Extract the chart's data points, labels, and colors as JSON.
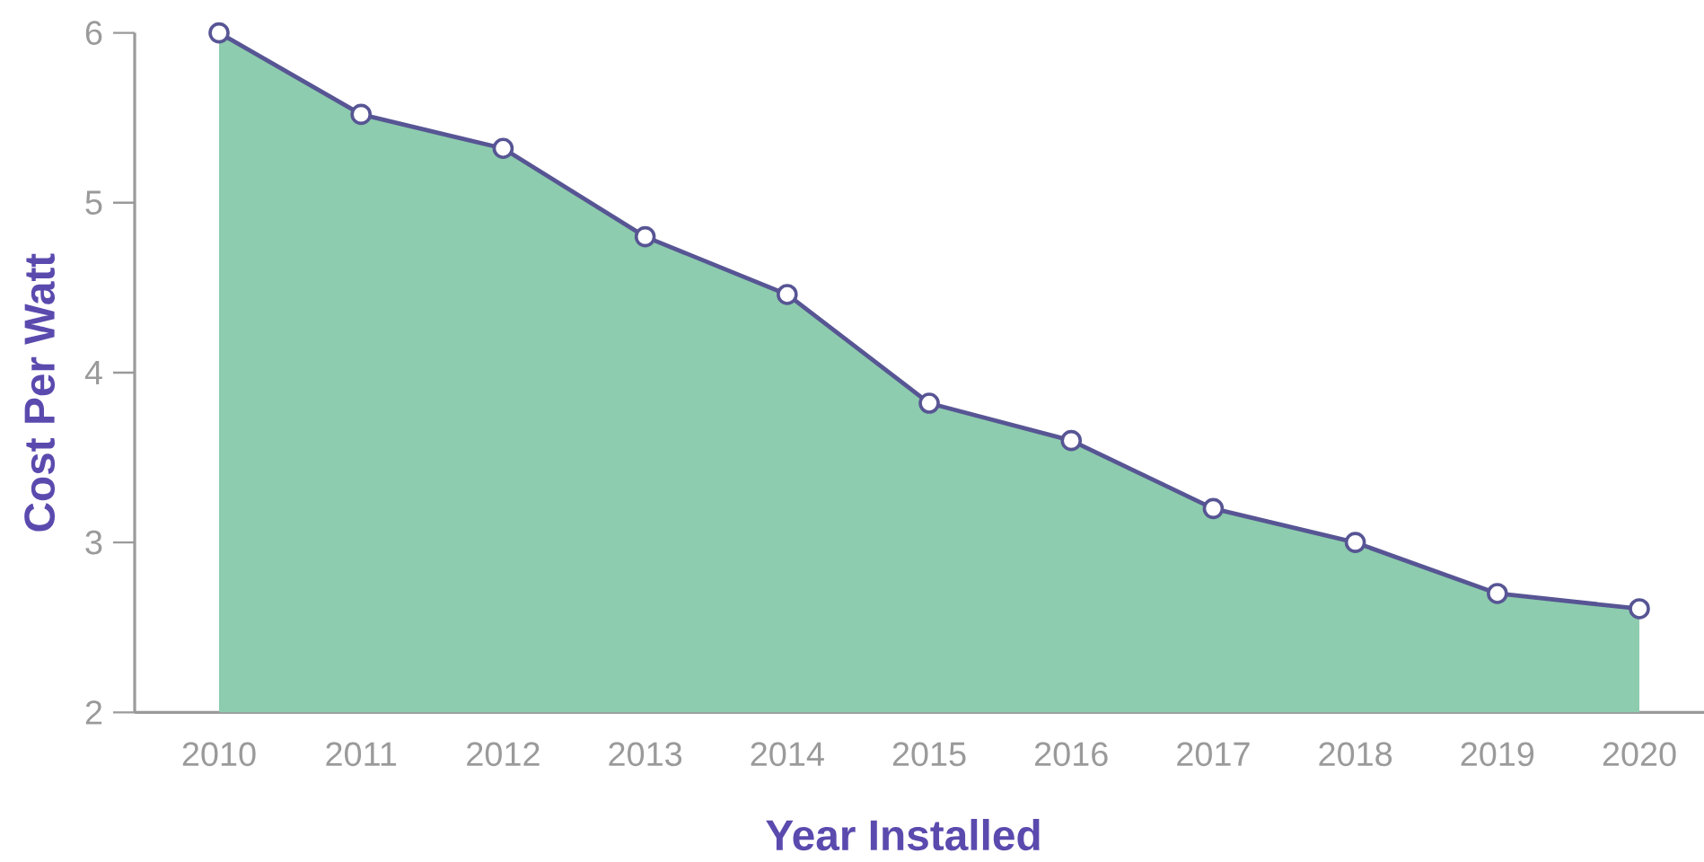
{
  "chart_data": {
    "type": "area",
    "xlabel": "Year Installed",
    "ylabel": "Cost Per Watt",
    "categories": [
      "2010",
      "2011",
      "2012",
      "2013",
      "2014",
      "2015",
      "2016",
      "2017",
      "2018",
      "2019",
      "2020"
    ],
    "series": [
      {
        "color": "#8dccae",
        "values": [
          6,
          5.52,
          5.32,
          4.8,
          4.46,
          3.82,
          3.6,
          3.2,
          3.0,
          2.7,
          2.61
        ]
      },
      {
        "type": "line",
        "color": "#575594",
        "marker": "circle",
        "line_style": "solid",
        "values": [
          6,
          5.52,
          5.32,
          4.8,
          4.46,
          3.82,
          3.6,
          3.2,
          3.0,
          2.7,
          2.61
        ]
      }
    ],
    "ylim": [
      2,
      6
    ],
    "yticks": [
      2,
      3,
      4,
      5,
      6
    ]
  }
}
